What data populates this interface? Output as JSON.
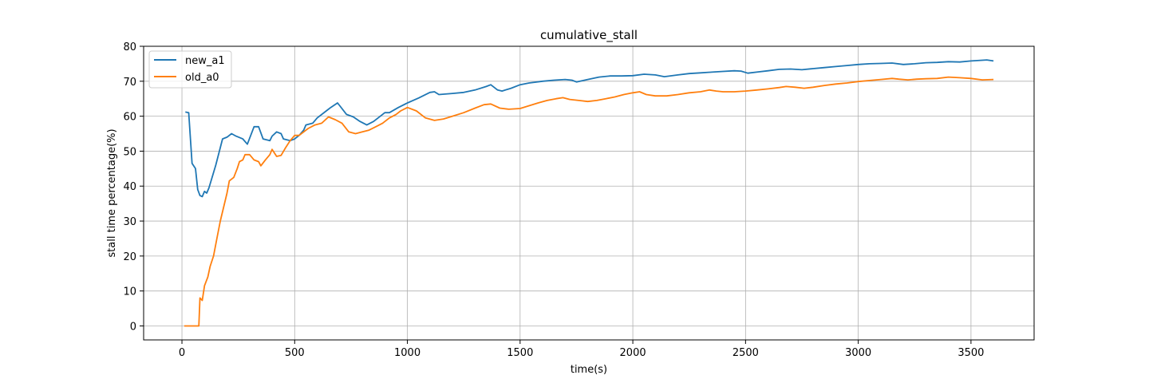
{
  "chart_data": {
    "type": "line",
    "title": "cumulative_stall",
    "xlabel": "time(s)",
    "ylabel": "stall time percentage(%)",
    "xlim": [
      -170,
      3780
    ],
    "ylim": [
      -4,
      80
    ],
    "xticks": [
      0,
      500,
      1000,
      1500,
      2000,
      2500,
      3000,
      3500
    ],
    "yticks": [
      0,
      10,
      20,
      30,
      40,
      50,
      60,
      70,
      80
    ],
    "grid": true,
    "legend": "top-left",
    "colors": {
      "new_a1": "#1f77b4",
      "old_a0": "#ff7f0e"
    },
    "series": [
      {
        "name": "new_a1",
        "color": "#1f77b4",
        "points": [
          [
            15,
            61.2
          ],
          [
            30,
            61
          ],
          [
            45,
            46.5
          ],
          [
            60,
            45
          ],
          [
            70,
            39
          ],
          [
            80,
            37.3
          ],
          [
            90,
            37
          ],
          [
            100,
            38.5
          ],
          [
            110,
            38
          ],
          [
            120,
            39.5
          ],
          [
            150,
            46
          ],
          [
            180,
            53.5
          ],
          [
            200,
            54
          ],
          [
            220,
            55
          ],
          [
            240,
            54.3
          ],
          [
            270,
            53.5
          ],
          [
            290,
            52
          ],
          [
            320,
            57
          ],
          [
            340,
            57
          ],
          [
            360,
            53.5
          ],
          [
            390,
            53
          ],
          [
            400,
            54.3
          ],
          [
            420,
            55.5
          ],
          [
            440,
            55
          ],
          [
            450,
            53.5
          ],
          [
            480,
            53
          ],
          [
            500,
            53.5
          ],
          [
            520,
            54.5
          ],
          [
            540,
            56
          ],
          [
            550,
            57.5
          ],
          [
            580,
            58
          ],
          [
            600,
            59.5
          ],
          [
            640,
            61.5
          ],
          [
            660,
            62.5
          ],
          [
            690,
            63.8
          ],
          [
            700,
            63
          ],
          [
            730,
            60.5
          ],
          [
            760,
            59.8
          ],
          [
            790,
            58.5
          ],
          [
            820,
            57.5
          ],
          [
            850,
            58.5
          ],
          [
            880,
            60
          ],
          [
            900,
            61
          ],
          [
            920,
            61
          ],
          [
            960,
            62.5
          ],
          [
            1000,
            63.8
          ],
          [
            1050,
            65.2
          ],
          [
            1100,
            66.8
          ],
          [
            1120,
            67
          ],
          [
            1140,
            66.2
          ],
          [
            1200,
            66.5
          ],
          [
            1250,
            66.8
          ],
          [
            1300,
            67.5
          ],
          [
            1350,
            68.5
          ],
          [
            1370,
            69
          ],
          [
            1400,
            67.5
          ],
          [
            1420,
            67.2
          ],
          [
            1460,
            68
          ],
          [
            1500,
            69
          ],
          [
            1540,
            69.5
          ],
          [
            1600,
            70
          ],
          [
            1650,
            70.3
          ],
          [
            1700,
            70.5
          ],
          [
            1730,
            70.3
          ],
          [
            1750,
            69.8
          ],
          [
            1800,
            70.5
          ],
          [
            1850,
            71.2
          ],
          [
            1900,
            71.5
          ],
          [
            1950,
            71.5
          ],
          [
            2000,
            71.6
          ],
          [
            2050,
            72
          ],
          [
            2100,
            71.8
          ],
          [
            2140,
            71.3
          ],
          [
            2200,
            71.8
          ],
          [
            2250,
            72.2
          ],
          [
            2300,
            72.4
          ],
          [
            2350,
            72.6
          ],
          [
            2400,
            72.8
          ],
          [
            2450,
            73
          ],
          [
            2480,
            72.9
          ],
          [
            2510,
            72.3
          ],
          [
            2560,
            72.7
          ],
          [
            2600,
            73
          ],
          [
            2650,
            73.4
          ],
          [
            2700,
            73.5
          ],
          [
            2750,
            73.3
          ],
          [
            2800,
            73.6
          ],
          [
            2850,
            73.9
          ],
          [
            2900,
            74.2
          ],
          [
            2950,
            74.5
          ],
          [
            3000,
            74.8
          ],
          [
            3050,
            75
          ],
          [
            3100,
            75.1
          ],
          [
            3150,
            75.2
          ],
          [
            3200,
            74.8
          ],
          [
            3250,
            75
          ],
          [
            3300,
            75.3
          ],
          [
            3350,
            75.4
          ],
          [
            3400,
            75.6
          ],
          [
            3450,
            75.5
          ],
          [
            3500,
            75.8
          ],
          [
            3550,
            76
          ],
          [
            3570,
            76.1
          ],
          [
            3600,
            75.8
          ]
        ]
      },
      {
        "name": "old_a0",
        "color": "#ff7f0e",
        "points": [
          [
            10,
            0
          ],
          [
            75,
            0
          ],
          [
            80,
            8
          ],
          [
            90,
            7.3
          ],
          [
            100,
            11.5
          ],
          [
            115,
            14
          ],
          [
            125,
            17
          ],
          [
            140,
            20
          ],
          [
            155,
            25
          ],
          [
            170,
            30
          ],
          [
            185,
            34
          ],
          [
            200,
            38
          ],
          [
            210,
            41.5
          ],
          [
            230,
            42.5
          ],
          [
            245,
            45
          ],
          [
            255,
            47
          ],
          [
            270,
            47.5
          ],
          [
            280,
            49
          ],
          [
            300,
            49
          ],
          [
            320,
            47.5
          ],
          [
            340,
            47
          ],
          [
            350,
            45.8
          ],
          [
            370,
            47.5
          ],
          [
            390,
            49
          ],
          [
            400,
            50.5
          ],
          [
            420,
            48.5
          ],
          [
            440,
            48.8
          ],
          [
            460,
            51
          ],
          [
            480,
            53
          ],
          [
            500,
            54.5
          ],
          [
            520,
            54.5
          ],
          [
            540,
            55.5
          ],
          [
            560,
            56.5
          ],
          [
            590,
            57.5
          ],
          [
            620,
            58
          ],
          [
            650,
            59.8
          ],
          [
            680,
            59
          ],
          [
            710,
            58
          ],
          [
            740,
            55.5
          ],
          [
            770,
            55
          ],
          [
            800,
            55.5
          ],
          [
            830,
            56
          ],
          [
            860,
            57
          ],
          [
            890,
            58
          ],
          [
            920,
            59.5
          ],
          [
            950,
            60.5
          ],
          [
            970,
            61.5
          ],
          [
            1000,
            62.5
          ],
          [
            1040,
            61.5
          ],
          [
            1080,
            59.5
          ],
          [
            1120,
            58.8
          ],
          [
            1160,
            59.2
          ],
          [
            1200,
            60
          ],
          [
            1250,
            61
          ],
          [
            1300,
            62.3
          ],
          [
            1340,
            63.3
          ],
          [
            1370,
            63.5
          ],
          [
            1410,
            62.3
          ],
          [
            1450,
            62
          ],
          [
            1500,
            62.2
          ],
          [
            1540,
            63
          ],
          [
            1580,
            63.8
          ],
          [
            1620,
            64.5
          ],
          [
            1660,
            65
          ],
          [
            1690,
            65.3
          ],
          [
            1720,
            64.8
          ],
          [
            1760,
            64.5
          ],
          [
            1800,
            64.2
          ],
          [
            1840,
            64.5
          ],
          [
            1880,
            65
          ],
          [
            1920,
            65.5
          ],
          [
            1960,
            66.2
          ],
          [
            2000,
            66.7
          ],
          [
            2030,
            67
          ],
          [
            2060,
            66.2
          ],
          [
            2100,
            65.8
          ],
          [
            2150,
            65.8
          ],
          [
            2200,
            66.2
          ],
          [
            2250,
            66.7
          ],
          [
            2300,
            67
          ],
          [
            2340,
            67.5
          ],
          [
            2370,
            67.2
          ],
          [
            2400,
            67
          ],
          [
            2450,
            67
          ],
          [
            2500,
            67.2
          ],
          [
            2550,
            67.5
          ],
          [
            2600,
            67.8
          ],
          [
            2650,
            68.2
          ],
          [
            2680,
            68.5
          ],
          [
            2720,
            68.3
          ],
          [
            2760,
            68
          ],
          [
            2800,
            68.3
          ],
          [
            2850,
            68.8
          ],
          [
            2900,
            69.2
          ],
          [
            2950,
            69.5
          ],
          [
            3000,
            69.9
          ],
          [
            3050,
            70.2
          ],
          [
            3100,
            70.5
          ],
          [
            3150,
            70.8
          ],
          [
            3180,
            70.6
          ],
          [
            3220,
            70.4
          ],
          [
            3260,
            70.6
          ],
          [
            3300,
            70.7
          ],
          [
            3350,
            70.8
          ],
          [
            3400,
            71.2
          ],
          [
            3450,
            71
          ],
          [
            3500,
            70.8
          ],
          [
            3550,
            70.4
          ],
          [
            3600,
            70.5
          ]
        ]
      }
    ]
  }
}
